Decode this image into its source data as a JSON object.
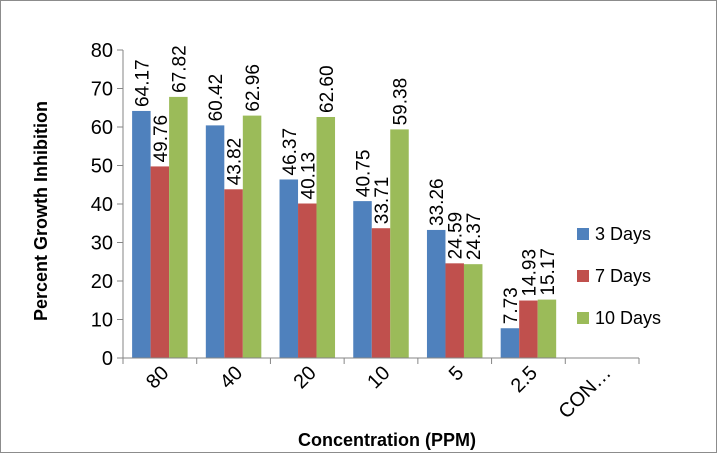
{
  "chart_data": {
    "type": "bar",
    "title": "",
    "xlabel": "Concentration (PPM)",
    "ylabel": "Percent Growth Inhibition",
    "categories": [
      "80",
      "40",
      "20",
      "10",
      "5",
      "2.5",
      "CON…"
    ],
    "series": [
      {
        "name": "3 Days",
        "color": "#4f81bd",
        "values": [
          64.17,
          60.42,
          46.37,
          40.75,
          33.26,
          7.73,
          null
        ],
        "labels": [
          "64.17",
          "60.42",
          "46.37",
          "40.75",
          "33.26",
          "7.73",
          ""
        ]
      },
      {
        "name": "7 Days",
        "color": "#c0504d",
        "values": [
          49.76,
          43.82,
          40.13,
          33.71,
          24.59,
          14.93,
          null
        ],
        "labels": [
          "49.76",
          "43.82",
          "40.13",
          "33.71",
          "24.59",
          "14.93",
          ""
        ]
      },
      {
        "name": "10 Days",
        "color": "#9bbb59",
        "values": [
          67.82,
          62.96,
          62.6,
          59.38,
          24.37,
          15.17,
          null
        ],
        "labels": [
          "67.82",
          "62.96",
          "62.60",
          "59.38",
          "24.37",
          "15.17",
          ""
        ]
      }
    ],
    "ylim": [
      0,
      80
    ],
    "yticks": [
      "0",
      "10",
      "20",
      "30",
      "40",
      "50",
      "60",
      "70",
      "80"
    ],
    "grid": false,
    "legend": "right"
  }
}
